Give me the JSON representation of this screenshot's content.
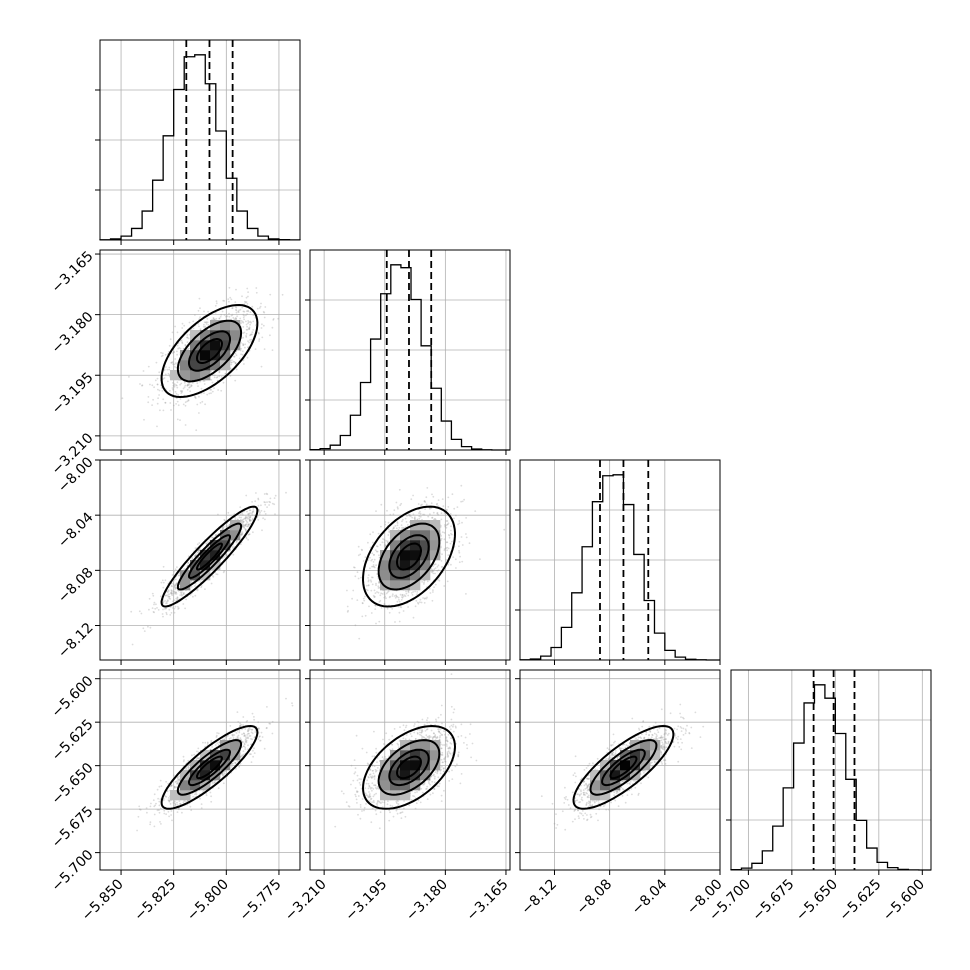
{
  "chart_data": {
    "type": "corner",
    "parameters": [
      {
        "range": [
          -5.86,
          -5.765
        ],
        "ticks": [
          -5.85,
          -5.825,
          -5.8,
          -5.775
        ],
        "tick_labels": [
          "−5.850",
          "−5.825",
          "−5.800",
          "−5.775"
        ]
      },
      {
        "range": [
          -3.2135,
          -3.164
        ],
        "ticks": [
          -3.21,
          -3.195,
          -3.18,
          -3.165
        ],
        "tick_labels": [
          "−3.210",
          "−3.195",
          "−3.180",
          "−3.165"
        ]
      },
      {
        "range": [
          -8.145,
          -8.0
        ],
        "ticks": [
          -8.12,
          -8.08,
          -8.04,
          -8.0
        ],
        "tick_labels": [
          "−8.12",
          "−8.08",
          "−8.04",
          "−8.00"
        ]
      },
      {
        "range": [
          -5.71,
          -5.595
        ],
        "ticks": [
          -5.7,
          -5.675,
          -5.65,
          -5.625,
          -5.6
        ],
        "tick_labels": [
          "−5.700",
          "−5.675",
          "−5.650",
          "−5.625",
          "−5.600"
        ]
      }
    ],
    "stats": [
      {
        "mean": -5.808,
        "sd": 0.011
      },
      {
        "mean": -3.189,
        "sd": 0.0055
      },
      {
        "mean": -8.07,
        "sd": 0.0175
      },
      {
        "mean": -5.651,
        "sd": 0.0115
      }
    ],
    "quantiles": [
      [
        -5.819,
        -5.808,
        -5.797
      ],
      [
        -3.1945,
        -3.189,
        -3.1835
      ],
      [
        -8.087,
        -8.07,
        -8.052
      ],
      [
        -5.6625,
        -5.651,
        -5.639
      ]
    ],
    "histograms": [
      {
        "bin_edges": [
          -5.86,
          -5.855,
          -5.85,
          -5.845,
          -5.84,
          -5.835,
          -5.83,
          -5.825,
          -5.82,
          -5.815,
          -5.81,
          -5.805,
          -5.8,
          -5.795,
          -5.79,
          -5.785,
          -5.78,
          -5.775,
          -5.77,
          -5.765,
          -5.76
        ],
        "counts": [
          2,
          12,
          40,
          120,
          300,
          620,
          1080,
          1560,
          1900,
          1920,
          1620,
          1130,
          640,
          300,
          120,
          40,
          12,
          3,
          1,
          0
        ]
      },
      {
        "bin_edges": [
          -3.2135,
          -3.211,
          -3.2085,
          -3.206,
          -3.2035,
          -3.201,
          -3.1985,
          -3.196,
          -3.1935,
          -3.191,
          -3.1885,
          -3.186,
          -3.1835,
          -3.181,
          -3.1785,
          -3.176,
          -3.1735,
          -3.171,
          -3.1685,
          -3.166,
          -3.1635
        ],
        "counts": [
          3,
          14,
          50,
          150,
          360,
          700,
          1150,
          1620,
          1920,
          1890,
          1560,
          1080,
          640,
          300,
          110,
          35,
          10,
          2,
          0,
          0
        ]
      },
      {
        "bin_edges": [
          -8.145,
          -8.1375,
          -8.13,
          -8.1225,
          -8.115,
          -8.1075,
          -8.1,
          -8.0925,
          -8.085,
          -8.0775,
          -8.07,
          -8.0625,
          -8.055,
          -8.0475,
          -8.04,
          -8.0325,
          -8.025,
          -8.0175,
          -8.01,
          -8.0025,
          -7.995
        ],
        "counts": [
          2,
          10,
          40,
          130,
          340,
          700,
          1180,
          1650,
          1920,
          1930,
          1620,
          1100,
          620,
          280,
          100,
          30,
          8,
          2,
          0,
          0
        ]
      },
      {
        "bin_edges": [
          -5.71,
          -5.704,
          -5.698,
          -5.692,
          -5.686,
          -5.68,
          -5.674,
          -5.668,
          -5.662,
          -5.656,
          -5.65,
          -5.644,
          -5.638,
          -5.632,
          -5.626,
          -5.62,
          -5.614,
          -5.608,
          -5.602,
          -5.596,
          -5.59
        ],
        "counts": [
          4,
          20,
          70,
          200,
          460,
          860,
          1330,
          1750,
          1940,
          1800,
          1430,
          950,
          520,
          230,
          80,
          25,
          6,
          1,
          0,
          0
        ]
      }
    ],
    "correlations": [
      [
        1.0,
        0.6,
        0.92,
        0.85
      ],
      [
        0.6,
        1.0,
        0.45,
        0.5
      ],
      [
        0.92,
        0.45,
        1.0,
        0.8
      ],
      [
        0.85,
        0.5,
        0.8,
        1.0
      ]
    ],
    "contour_sigma_levels": [
      0.5,
      1.0,
      1.5,
      2.0
    ],
    "grid": true,
    "colors": {
      "points": "#9a9a9a",
      "lines": "#000000",
      "grid": "#b0b0b0"
    }
  }
}
